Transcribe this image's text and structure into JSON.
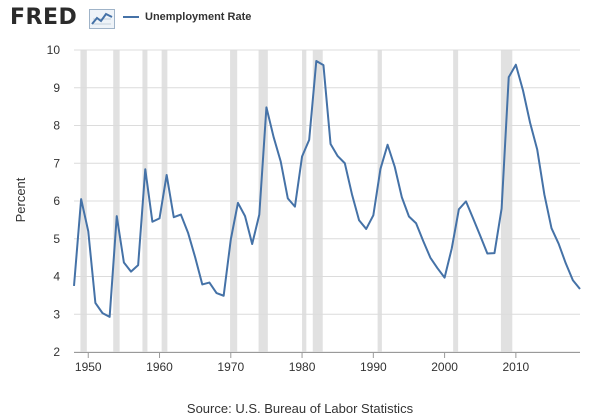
{
  "header": {
    "logo_text": "FRED"
  },
  "legend": {
    "label": "Unemployment Rate"
  },
  "footer": {
    "source": "Source: U.S. Bureau of Labor Statistics"
  },
  "colors": {
    "series": "#4572a7",
    "recession": "#e1e1e1",
    "grid": "#dcdcdc",
    "text": "#333333"
  },
  "chart_data": {
    "type": "line",
    "title": "",
    "xlabel": "",
    "ylabel": "Percent",
    "xlim": [
      1948,
      2019
    ],
    "ylim": [
      2,
      10
    ],
    "x_ticks": [
      1950,
      1960,
      1970,
      1980,
      1990,
      2000,
      2010
    ],
    "x_tick_labels": [
      "1950",
      "1960",
      "1970",
      "1980",
      "1990",
      "2000",
      "2010"
    ],
    "y_ticks": [
      2,
      3,
      4,
      5,
      6,
      7,
      8,
      9,
      10
    ],
    "y_tick_labels": [
      "2",
      "3",
      "4",
      "5",
      "6",
      "7",
      "8",
      "9",
      "10"
    ],
    "grid": "horizontal",
    "legend_position": "top-left",
    "recessions": [
      [
        1948.9,
        1949.8
      ],
      [
        1953.5,
        1954.4
      ],
      [
        1957.6,
        1958.3
      ],
      [
        1960.3,
        1961.1
      ],
      [
        1969.9,
        1970.9
      ],
      [
        1973.9,
        1975.2
      ],
      [
        1980.0,
        1980.6
      ],
      [
        1981.5,
        1982.9
      ],
      [
        1990.6,
        1991.2
      ],
      [
        2001.2,
        2001.9
      ],
      [
        2007.9,
        2009.5
      ]
    ],
    "series": [
      {
        "name": "Unemployment Rate",
        "x": [
          1948,
          1949,
          1950,
          1951,
          1952,
          1953,
          1954,
          1955,
          1956,
          1957,
          1958,
          1959,
          1960,
          1961,
          1962,
          1963,
          1964,
          1965,
          1966,
          1967,
          1968,
          1969,
          1970,
          1971,
          1972,
          1973,
          1974,
          1975,
          1976,
          1977,
          1978,
          1979,
          1980,
          1981,
          1982,
          1983,
          1984,
          1985,
          1986,
          1987,
          1988,
          1989,
          1990,
          1991,
          1992,
          1993,
          1994,
          1995,
          1996,
          1997,
          1998,
          1999,
          2000,
          2001,
          2002,
          2003,
          2004,
          2005,
          2006,
          2007,
          2008,
          2009,
          2010,
          2011,
          2012,
          2013,
          2014,
          2015,
          2016,
          2017,
          2018,
          2019
        ],
        "values": [
          3.75,
          6.05,
          5.2,
          3.3,
          3.03,
          2.93,
          5.6,
          4.37,
          4.13,
          4.3,
          6.84,
          5.45,
          5.54,
          6.69,
          5.57,
          5.64,
          5.16,
          4.51,
          3.79,
          3.84,
          3.56,
          3.49,
          4.98,
          5.95,
          5.6,
          4.86,
          5.64,
          8.48,
          7.7,
          7.05,
          6.07,
          5.85,
          7.18,
          7.62,
          9.71,
          9.6,
          7.51,
          7.19,
          7.0,
          6.18,
          5.49,
          5.26,
          5.62,
          6.85,
          7.49,
          6.91,
          6.1,
          5.59,
          5.41,
          4.94,
          4.5,
          4.22,
          3.97,
          4.74,
          5.78,
          5.99,
          5.54,
          5.08,
          4.61,
          4.62,
          5.8,
          9.28,
          9.61,
          8.93,
          8.07,
          7.36,
          6.17,
          5.28,
          4.87,
          4.35,
          3.9,
          3.67
        ]
      }
    ]
  }
}
